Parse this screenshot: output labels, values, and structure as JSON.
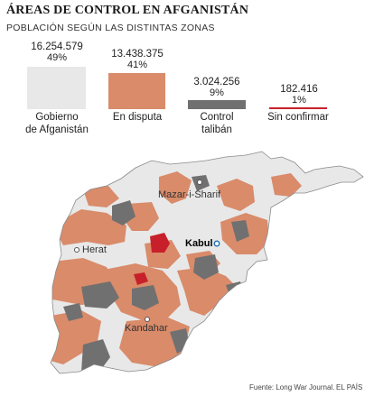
{
  "title": "ÁREAS DE CONTROL EN AFGANISTÁN",
  "subtitle": "POBLACIÓN SEGÚN LAS DISTINTAS ZONAS",
  "legend": [
    {
      "value": "16.254.579",
      "percent": "49%",
      "label_1": "Gobierno",
      "label_2": "de Afganistán",
      "color": "#e8e8e8"
    },
    {
      "value": "13.438.375",
      "percent": "41%",
      "label_1": "En disputa",
      "label_2": "",
      "color": "#d98b6a"
    },
    {
      "value": "3.024.256",
      "percent": "9%",
      "label_1": "Control",
      "label_2": "talibán",
      "color": "#707070"
    },
    {
      "value": "182.416",
      "percent": "1%",
      "label_1": "Sin confirmar",
      "label_2": "",
      "color": "#c8202a"
    }
  ],
  "cities": {
    "mazar": "Mazar-i-Sharif",
    "herat": "Herat",
    "kabul": "Kabul",
    "kandahar": "Kandahar"
  },
  "footer": {
    "source": "Fuente: Long War Journal.",
    "credit": "EL PAÍS"
  }
}
